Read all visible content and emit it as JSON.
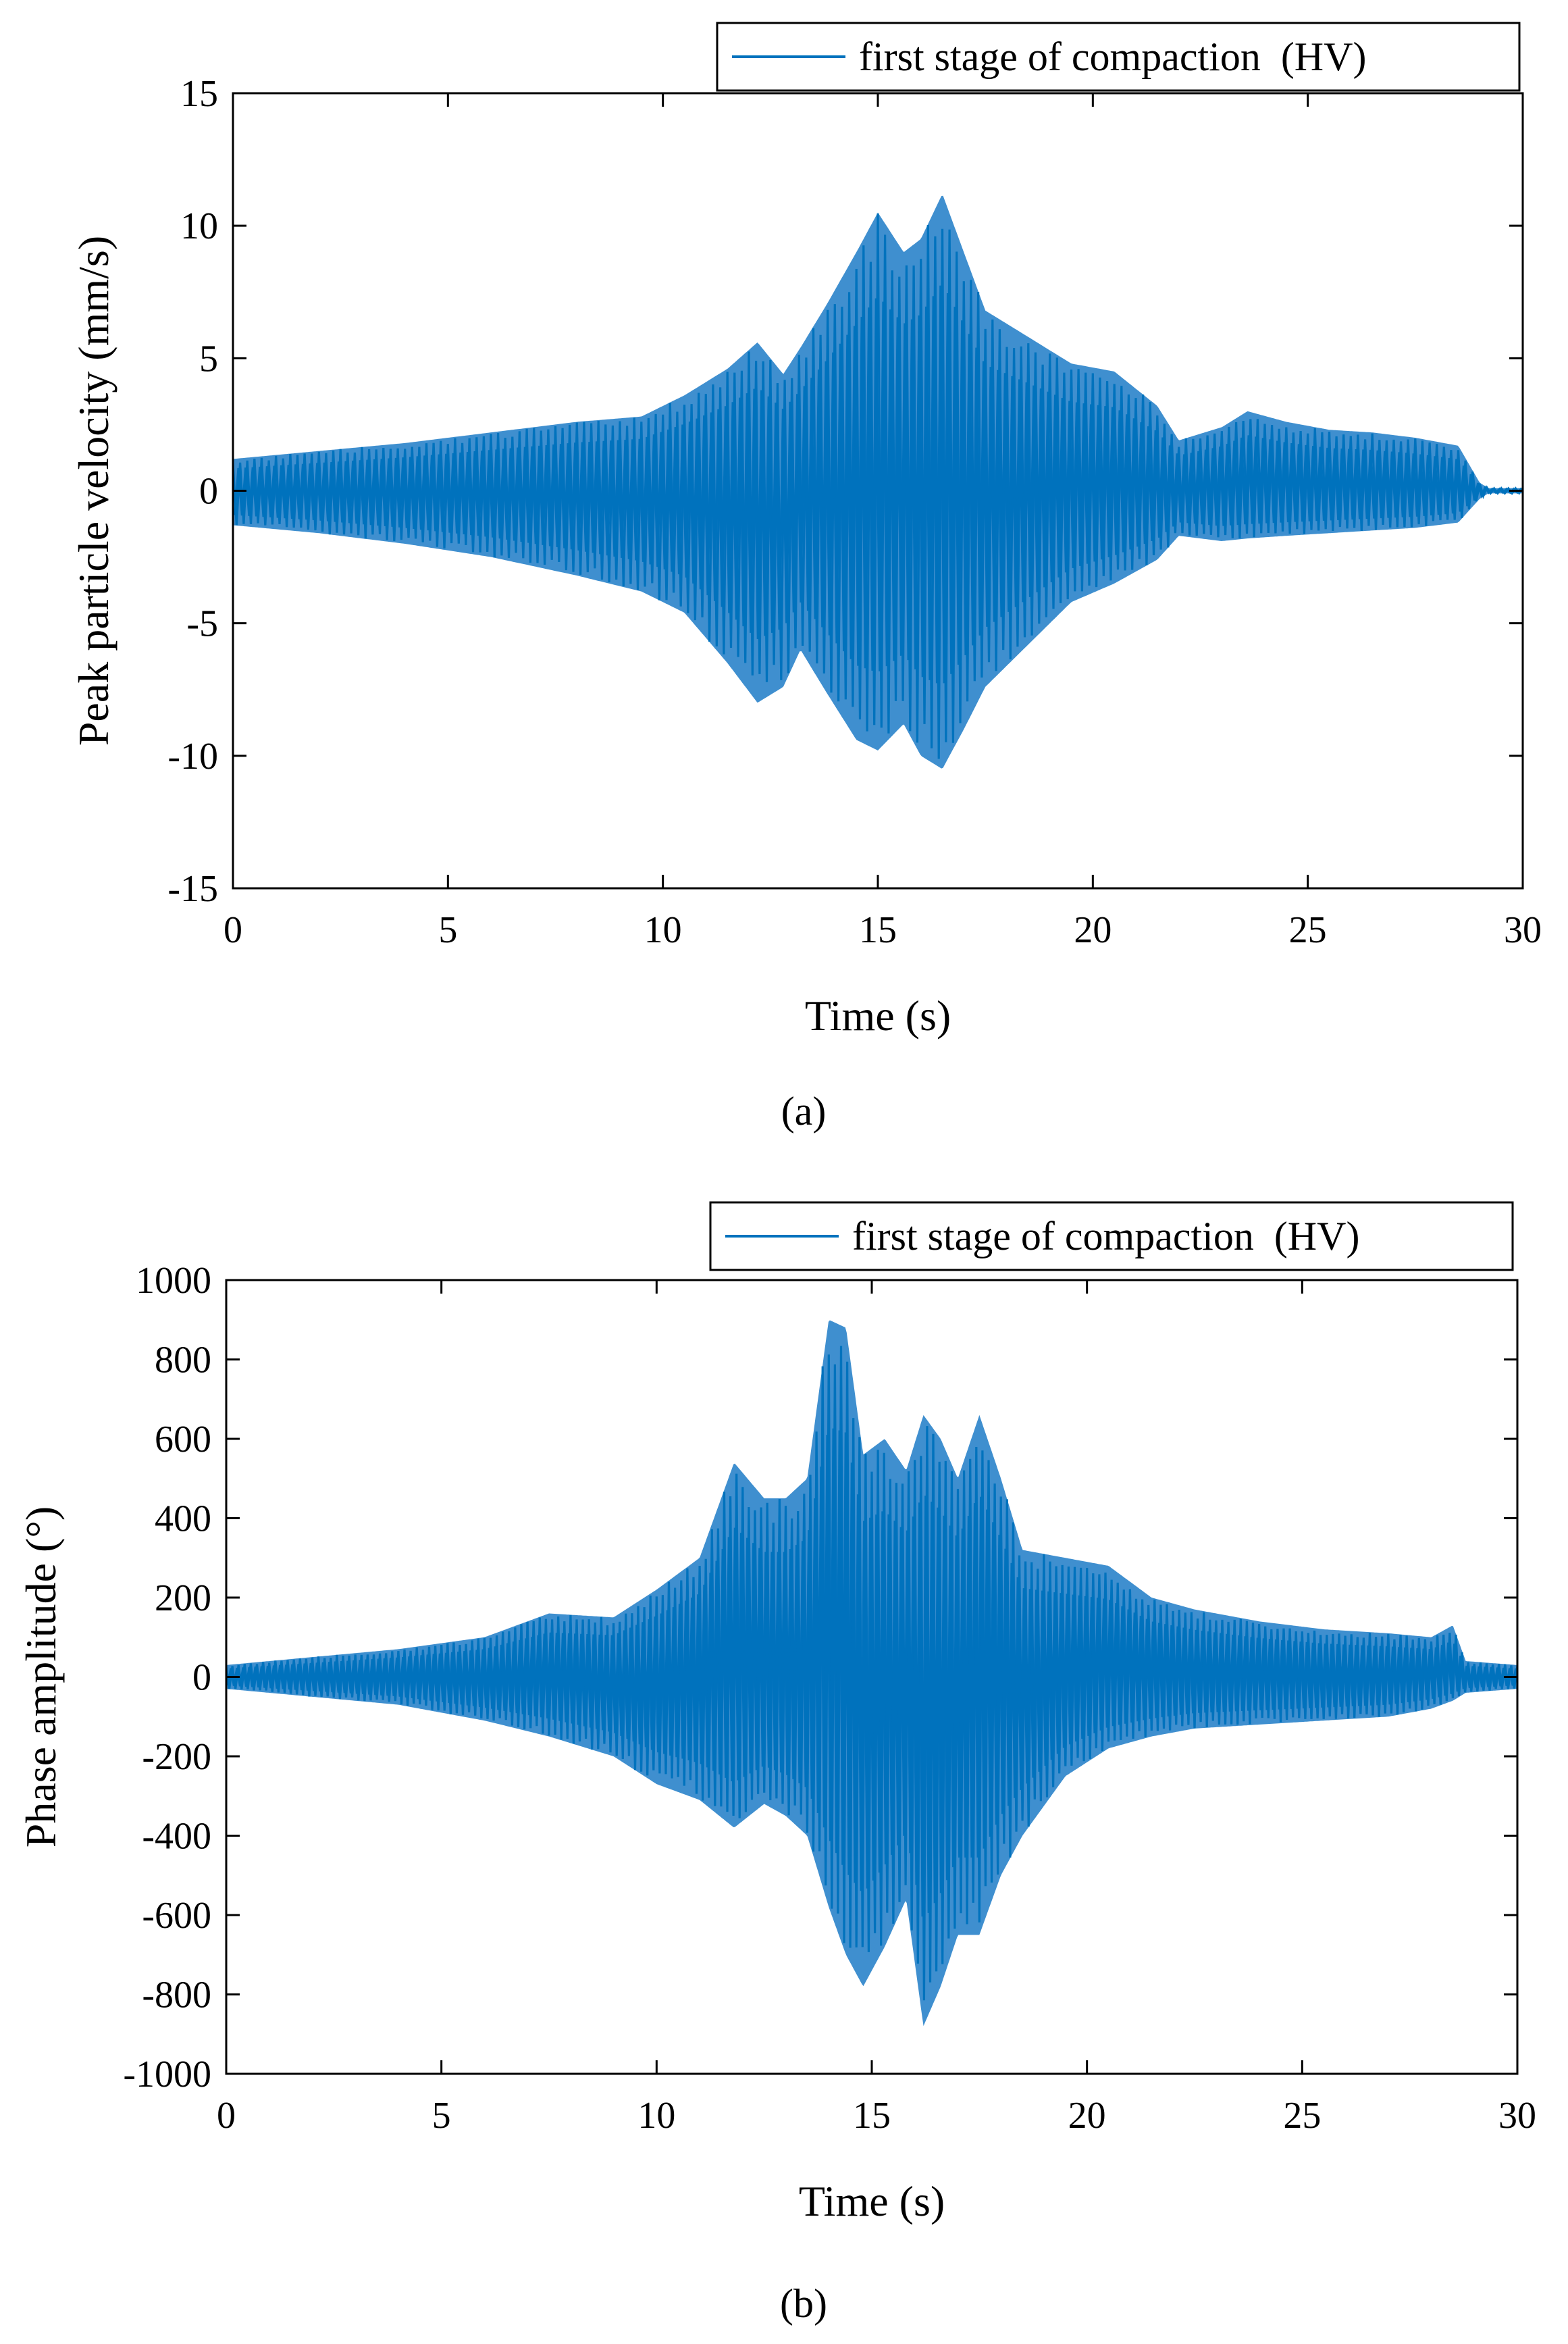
{
  "chart_data": [
    {
      "type": "line",
      "panel_label": "(a)",
      "xlabel": "Time (s)",
      "ylabel": "Peak particle velocity (mm/s)",
      "xlim": [
        0,
        30
      ],
      "ylim": [
        -15,
        15
      ],
      "xticks": [
        0,
        5,
        10,
        15,
        20,
        25,
        30
      ],
      "yticks": [
        15,
        10,
        5,
        0,
        -5,
        -10,
        -15
      ],
      "legend": {
        "label": "first stage of compaction  (HV)",
        "placement": "top-right"
      },
      "series": [
        {
          "name": "first stage of compaction  (HV)",
          "color": "#0072BD",
          "fill_color": "#3f8fcf",
          "oscillation_hz": 6,
          "envelope_t": [
            0,
            2,
            4,
            6,
            8,
            9.5,
            10.5,
            11.5,
            12.2,
            12.8,
            13.2,
            13.8,
            14.5,
            15.0,
            15.6,
            16.0,
            16.5,
            17.0,
            17.5,
            18.5,
            19.5,
            20.5,
            21.5,
            22.0,
            23.0,
            23.6,
            24.5,
            25.5,
            26.5,
            27.5,
            28.5,
            29.0,
            29.2,
            30.0
          ],
          "envelope_upper": [
            1.2,
            1.5,
            1.8,
            2.2,
            2.6,
            2.8,
            3.6,
            4.6,
            5.6,
            4.4,
            5.4,
            7.0,
            9.0,
            10.5,
            9.0,
            9.5,
            11.2,
            9.0,
            6.8,
            5.8,
            4.8,
            4.5,
            3.2,
            1.9,
            2.4,
            3.0,
            2.6,
            2.3,
            2.2,
            2.0,
            1.7,
            0.3,
            0.1,
            0.1
          ],
          "envelope_lower": [
            -1.3,
            -1.6,
            -2.0,
            -2.5,
            -3.2,
            -3.8,
            -4.6,
            -6.5,
            -8.0,
            -7.4,
            -6.0,
            -7.6,
            -9.4,
            -9.8,
            -8.8,
            -10.0,
            -10.5,
            -9.0,
            -7.4,
            -5.8,
            -4.2,
            -3.5,
            -2.6,
            -1.7,
            -1.9,
            -1.8,
            -1.7,
            -1.6,
            -1.5,
            -1.4,
            -1.2,
            -0.3,
            -0.1,
            -0.1
          ]
        }
      ]
    },
    {
      "type": "line",
      "panel_label": "(b)",
      "xlabel": "Time (s)",
      "ylabel": "Phase amplitude (°)",
      "xlim": [
        0,
        30
      ],
      "ylim": [
        -1000,
        1000
      ],
      "xticks": [
        0,
        5,
        10,
        15,
        20,
        25,
        30
      ],
      "yticks": [
        1000,
        800,
        600,
        400,
        200,
        0,
        -200,
        -400,
        -600,
        -800,
        -1000
      ],
      "legend": {
        "label": "first stage of compaction  (HV)",
        "placement": "top-right"
      },
      "series": [
        {
          "name": "first stage of compaction  (HV)",
          "color": "#0072BD",
          "fill_color": "#3f8fcf",
          "oscillation_hz": 7,
          "envelope_t": [
            0,
            2,
            4,
            6,
            7.5,
            9,
            10,
            11,
            11.8,
            12.5,
            13.0,
            13.5,
            14.0,
            14.4,
            14.8,
            15.3,
            15.8,
            16.2,
            16.6,
            17.0,
            17.5,
            18.0,
            18.5,
            19.5,
            20.5,
            21.5,
            22.5,
            24.0,
            25.5,
            27.0,
            28.0,
            28.5,
            28.8,
            30.0
          ],
          "envelope_upper": [
            30,
            50,
            70,
            100,
            160,
            150,
            220,
            300,
            540,
            450,
            450,
            500,
            900,
            880,
            560,
            600,
            520,
            660,
            600,
            500,
            660,
            500,
            320,
            300,
            280,
            200,
            170,
            140,
            120,
            110,
            100,
            130,
            40,
            30
          ],
          "envelope_lower": [
            -30,
            -50,
            -70,
            -110,
            -150,
            -200,
            -270,
            -310,
            -380,
            -320,
            -350,
            -400,
            -580,
            -700,
            -780,
            -680,
            -560,
            -880,
            -780,
            -650,
            -650,
            -500,
            -400,
            -250,
            -180,
            -150,
            -130,
            -120,
            -110,
            -100,
            -80,
            -60,
            -40,
            -30
          ]
        }
      ]
    }
  ]
}
